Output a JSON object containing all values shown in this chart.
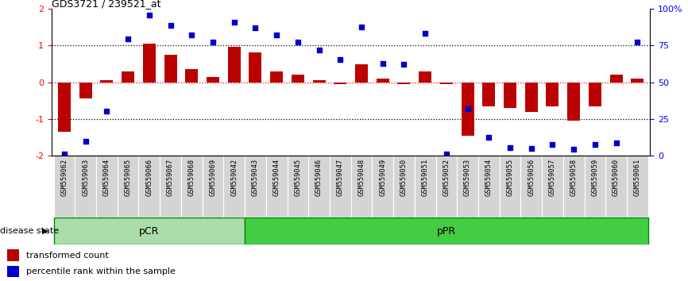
{
  "title": "GDS3721 / 239521_at",
  "samples": [
    "GSM559062",
    "GSM559063",
    "GSM559064",
    "GSM559065",
    "GSM559066",
    "GSM559067",
    "GSM559068",
    "GSM559069",
    "GSM559042",
    "GSM559043",
    "GSM559044",
    "GSM559045",
    "GSM559046",
    "GSM559047",
    "GSM559048",
    "GSM559049",
    "GSM559050",
    "GSM559051",
    "GSM559052",
    "GSM559053",
    "GSM559054",
    "GSM559055",
    "GSM559056",
    "GSM559057",
    "GSM559058",
    "GSM559059",
    "GSM559060",
    "GSM559061"
  ],
  "bar_values": [
    -1.35,
    -0.45,
    0.05,
    0.3,
    1.05,
    0.75,
    0.35,
    0.15,
    0.95,
    0.8,
    0.3,
    0.2,
    0.05,
    -0.05,
    0.48,
    0.1,
    -0.05,
    0.3,
    -0.05,
    -1.45,
    -0.65,
    -0.7,
    -0.8,
    -0.65,
    -1.05,
    -0.65,
    0.2,
    0.1
  ],
  "percentile_values": [
    -1.95,
    -1.6,
    -0.78,
    1.18,
    1.82,
    1.55,
    1.28,
    1.08,
    1.62,
    1.48,
    1.28,
    1.08,
    0.88,
    0.62,
    1.5,
    0.5,
    0.48,
    1.32,
    -1.95,
    -0.72,
    -1.5,
    -1.78,
    -1.8,
    -1.68,
    -1.82,
    -1.68,
    -1.65,
    1.08
  ],
  "pCR_count": 9,
  "bar_color": "#BB0000",
  "dot_color": "#0000CC",
  "ylim": [
    -2,
    2
  ],
  "yticks_left": [
    -2,
    -1,
    0,
    1,
    2
  ],
  "yticks_right_pos": [
    -2,
    -1,
    0,
    1,
    2
  ],
  "yticks_right_labels": [
    "0",
    "25",
    "50",
    "75",
    "100%"
  ],
  "dotted_lines": [
    1.0,
    0.0,
    -1.0
  ],
  "pCR_color": "#AADDAA",
  "pPR_color": "#44CC44",
  "label_bar": "transformed count",
  "label_dot": "percentile rank within the sample",
  "disease_state_label": "disease state"
}
